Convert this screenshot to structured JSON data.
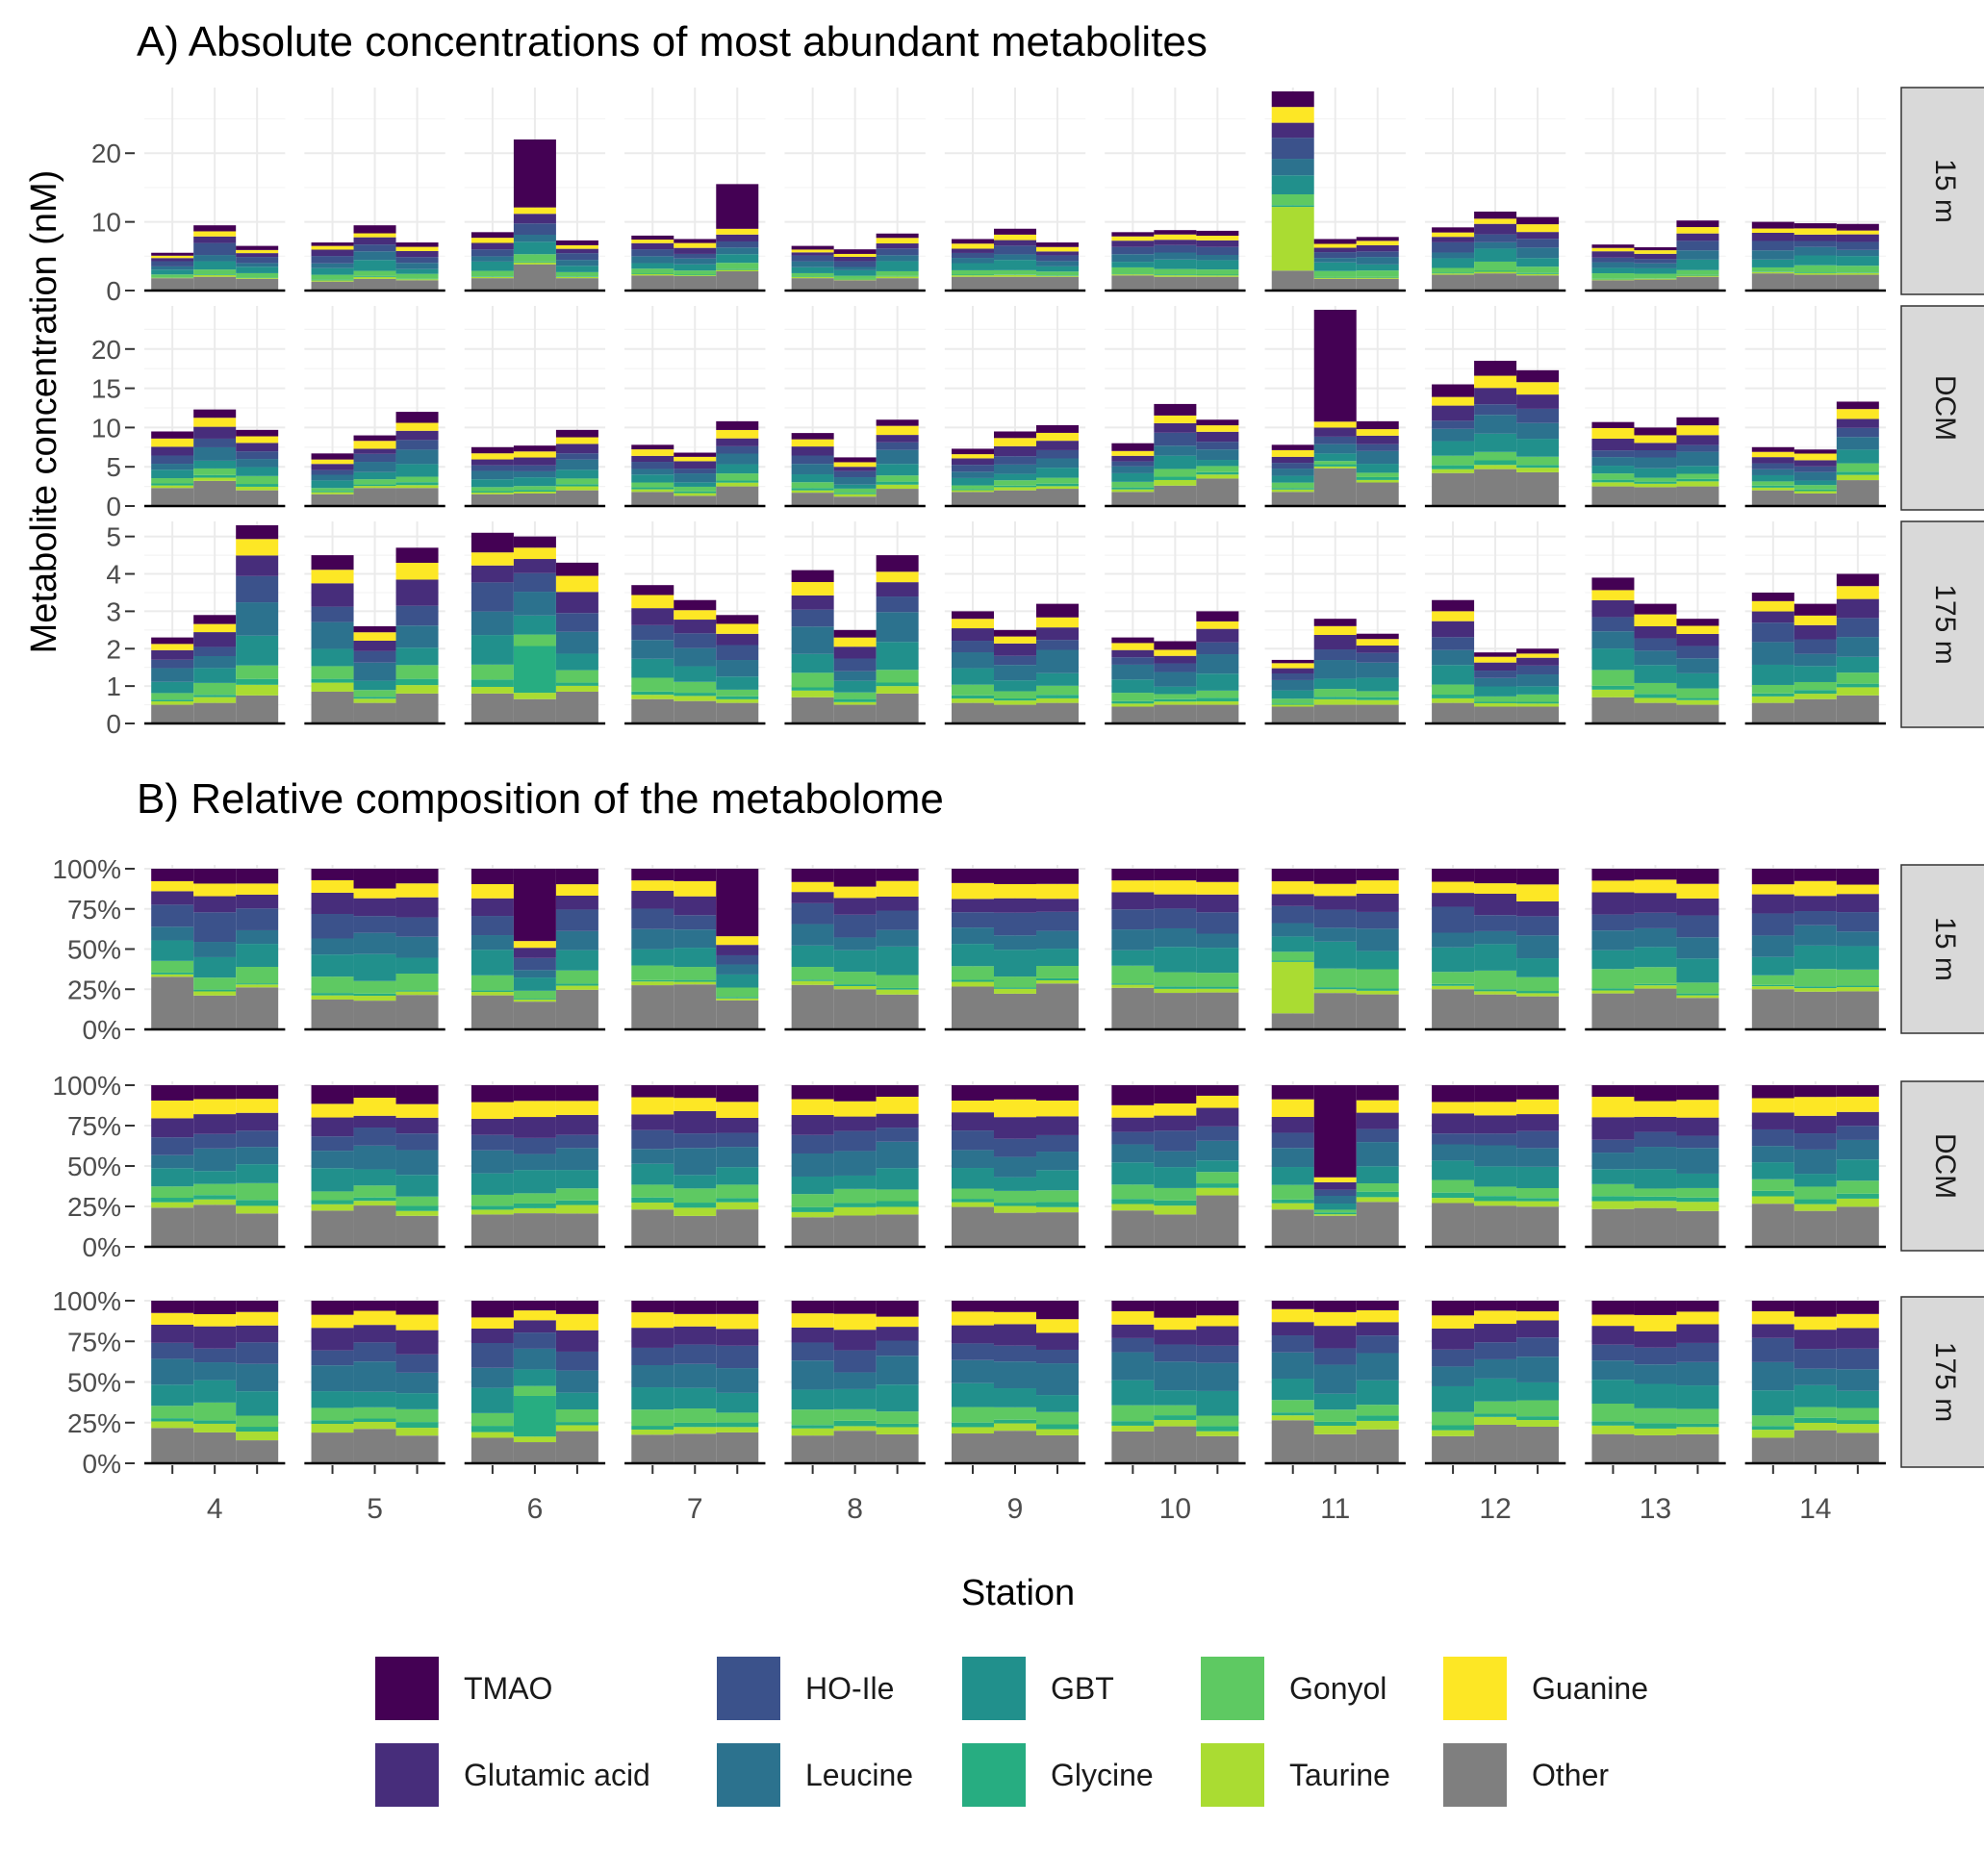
{
  "figure": {
    "title_a": "A) Absolute concentrations of most abundant metabolites",
    "title_b": "B) Relative composition of the metabolome",
    "ylabel": "Metabolite concentration (nM)",
    "xlabel": "Station"
  },
  "chart_data": {
    "type": "bar",
    "stacked": true,
    "stations": [
      "4",
      "5",
      "6",
      "7",
      "8",
      "9",
      "10",
      "11",
      "12",
      "13",
      "14"
    ],
    "bars_per_station": 3,
    "depths": [
      "15 m",
      "DCM",
      "175 m"
    ],
    "stack_order_bottom_to_top": [
      "Other",
      "Taurine",
      "Glycine",
      "Gonyol",
      "GBT",
      "Leucine",
      "HO-Ile",
      "Glutamic acid",
      "Guanine",
      "TMAO"
    ],
    "legend": [
      {
        "name": "TMAO",
        "color": "#440154"
      },
      {
        "name": "HO-Ile",
        "color": "#3b528b"
      },
      {
        "name": "GBT",
        "color": "#21908c"
      },
      {
        "name": "Gonyol",
        "color": "#5ec962"
      },
      {
        "name": "Guanine",
        "color": "#fde725"
      },
      {
        "name": "Glutamic acid",
        "color": "#472d7b"
      },
      {
        "name": "Leucine",
        "color": "#2c728e"
      },
      {
        "name": "Glycine",
        "color": "#27ad81"
      },
      {
        "name": "Taurine",
        "color": "#aadc32"
      },
      {
        "name": "Other",
        "color": "#7f7f7f"
      }
    ],
    "panel_a": {
      "ylabel": "Metabolite concentration (nM)",
      "facets": [
        {
          "depth": "15 m",
          "yticks": [
            "0",
            "10",
            "20"
          ],
          "ylim": [
            0,
            29
          ],
          "totals": [
            [
              5.5,
              9.5,
              6.5
            ],
            [
              7,
              9.5,
              7
            ],
            [
              8.5,
              22,
              7.3
            ],
            [
              8,
              7.5,
              15.5
            ],
            [
              6.5,
              6,
              8.3
            ],
            [
              7.5,
              9,
              7
            ],
            [
              8.5,
              8.8,
              8.7
            ],
            [
              29,
              7.5,
              7.8
            ],
            [
              9.2,
              11.5,
              10.7
            ],
            [
              6.7,
              6.3,
              10.2
            ],
            [
              10,
              9.8,
              9.7
            ]
          ],
          "other": [
            [
              1.8,
              2,
              1.7
            ],
            [
              1.3,
              1.7,
              1.5
            ],
            [
              1.8,
              3.8,
              1.8
            ],
            [
              2.2,
              2.1,
              2.8
            ],
            [
              1.8,
              1.5,
              1.8
            ],
            [
              2,
              2,
              2
            ],
            [
              2.2,
              2,
              2
            ],
            [
              3,
              1.7,
              1.7
            ],
            [
              2.3,
              2.5,
              2.2
            ],
            [
              1.5,
              1.6,
              2
            ],
            [
              2.5,
              2.3,
              2.3
            ]
          ]
        },
        {
          "depth": "DCM",
          "yticks": [
            "0",
            "5",
            "10",
            "15",
            "20"
          ],
          "ylim": [
            0,
            25
          ],
          "totals": [
            [
              9.5,
              12.3,
              9.7
            ],
            [
              6.7,
              9,
              12
            ],
            [
              7.5,
              7.7,
              9.7
            ],
            [
              7.8,
              6.8,
              10.8
            ],
            [
              9.3,
              6.2,
              11
            ],
            [
              7.3,
              9.5,
              10.3
            ],
            [
              8,
              13,
              11
            ],
            [
              7.8,
              25,
              10.8
            ],
            [
              15.5,
              18.5,
              17.3
            ],
            [
              10.7,
              10,
              11.3
            ],
            [
              7.5,
              7.2,
              13.3
            ]
          ],
          "other": [
            [
              2.3,
              3.2,
              2
            ],
            [
              1.5,
              2.3,
              2.3
            ],
            [
              1.5,
              1.6,
              2
            ],
            [
              1.8,
              1.3,
              2.5
            ],
            [
              1.7,
              1.2,
              2.2
            ],
            [
              1.8,
              2,
              2.2
            ],
            [
              1.8,
              2.6,
              3.5
            ],
            [
              1.8,
              4.8,
              3
            ],
            [
              4.2,
              4.7,
              4.3
            ],
            [
              2.5,
              2.4,
              2.5
            ],
            [
              2,
              1.6,
              3.3
            ]
          ]
        },
        {
          "depth": "175 m",
          "yticks": [
            "0",
            "1",
            "2",
            "3",
            "4",
            "5"
          ],
          "ylim": [
            0,
            5.3
          ],
          "totals": [
            [
              2.3,
              2.9,
              5.3
            ],
            [
              4.5,
              2.6,
              4.7
            ],
            [
              5.1,
              5,
              4.3
            ],
            [
              3.7,
              3.3,
              2.9
            ],
            [
              4.1,
              2.5,
              4.5
            ],
            [
              3,
              2.5,
              3.2
            ],
            [
              2.3,
              2.2,
              3
            ],
            [
              1.7,
              2.8,
              2.4
            ],
            [
              3.3,
              1.9,
              2
            ],
            [
              3.9,
              3.2,
              2.8
            ],
            [
              3.5,
              3.2,
              4
            ]
          ],
          "other": [
            [
              0.5,
              0.55,
              0.75
            ],
            [
              0.85,
              0.55,
              0.8
            ],
            [
              0.8,
              0.75,
              0.85
            ],
            [
              0.65,
              0.6,
              0.55
            ],
            [
              0.7,
              0.5,
              0.8
            ],
            [
              0.55,
              0.5,
              0.55
            ],
            [
              0.45,
              0.5,
              0.5
            ],
            [
              0.45,
              0.5,
              0.5
            ],
            [
              0.55,
              0.45,
              0.45
            ],
            [
              0.7,
              0.55,
              0.5
            ],
            [
              0.55,
              0.65,
              0.75
            ]
          ]
        }
      ]
    },
    "panel_b": {
      "yticks": [
        "0%",
        "25%",
        "50%",
        "75%",
        "100%"
      ],
      "ylim": [
        0,
        1
      ],
      "profiles": {
        "15 m": {
          "other": 0.22,
          "TMAO": 0.1,
          "cum": [
            0.22,
            0.24,
            0.25,
            0.33,
            0.45,
            0.55,
            0.66,
            0.75,
            0.82,
            0.9,
            1.0
          ]
        },
        "DCM": {
          "other": 0.24,
          "TMAO": 0.2,
          "cum": [
            0.24,
            0.27,
            0.29,
            0.34,
            0.42,
            0.51,
            0.58,
            0.66,
            0.73,
            0.8,
            1.0
          ]
        },
        "175 m": {
          "other": 0.19,
          "TMAO": 0.22,
          "cum": [
            0.19,
            0.22,
            0.24,
            0.3,
            0.39,
            0.5,
            0.58,
            0.66,
            0.72,
            0.78,
            1.0
          ]
        }
      },
      "special": [
        {
          "facet": "15 m",
          "station": "11",
          "bar": 1,
          "note": "Taurine dominant (~32%)",
          "taurine": 0.32,
          "other": 0.1
        },
        {
          "facet": "175 m",
          "station": "6",
          "bar": 2,
          "note": "Glycine dominant (~25%)",
          "glycine": 0.25,
          "other": 0.13
        },
        {
          "facet": "DCM",
          "station": "11",
          "bar": 2,
          "note": "TMAO dominant (~57%)",
          "TMAO": 0.57
        },
        {
          "facet": "15 m",
          "station": "6",
          "bar": 2,
          "note": "TMAO dominant (~45%)",
          "TMAO": 0.45
        },
        {
          "facet": "15 m",
          "station": "7",
          "bar": 3,
          "note": "TMAO dominant (~42%)",
          "TMAO": 0.42
        }
      ]
    }
  }
}
